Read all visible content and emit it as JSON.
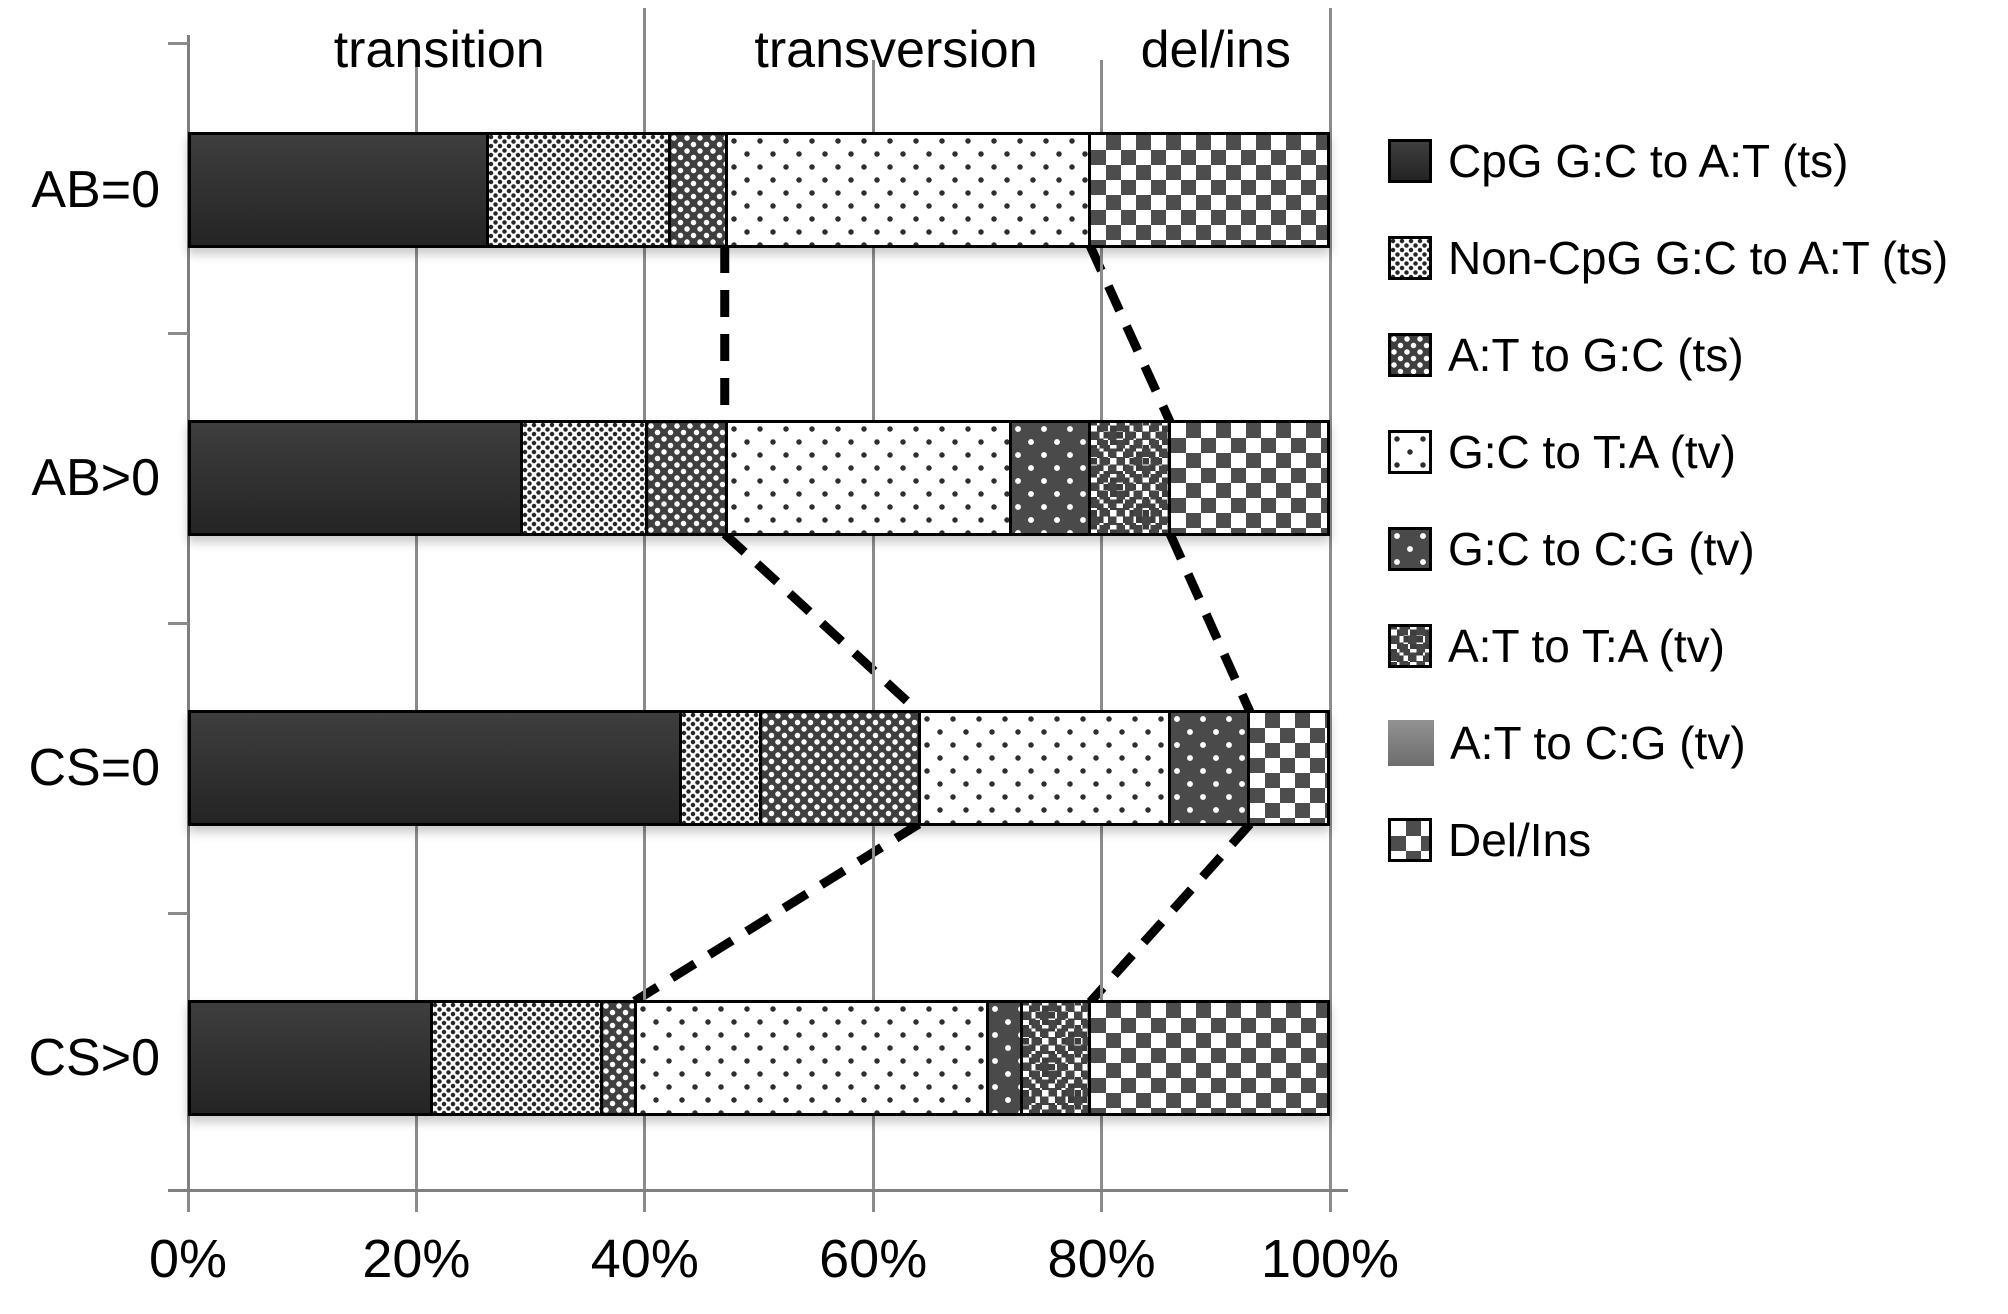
{
  "chart_data": {
    "type": "bar",
    "orientation": "horizontal",
    "stacked": true,
    "unit": "percent",
    "categories": [
      "AB=0",
      "AB>0",
      "CS=0",
      "CS>0"
    ],
    "series": [
      {
        "name": "CpG G:C to A:T (ts)",
        "pattern": "solid-dark",
        "values": [
          26,
          29,
          43,
          21
        ]
      },
      {
        "name": "Non-CpG G:C to A:T (ts)",
        "pattern": "dense-dark-dots-light",
        "values": [
          16,
          11,
          7,
          15
        ]
      },
      {
        "name": "A:T to G:C (ts)",
        "pattern": "white-dots-dark-dense",
        "values": [
          5,
          7,
          14,
          3
        ]
      },
      {
        "name": "G:C to T:A (tv)",
        "pattern": "sparse-dark-dots-light",
        "values": [
          32,
          25,
          22,
          31
        ]
      },
      {
        "name": "G:C to C:G (tv)",
        "pattern": "white-dots-dark-sparse",
        "values": [
          0,
          7,
          7,
          3
        ]
      },
      {
        "name": "A:T to T:A (tv)",
        "pattern": "small-random-checker",
        "values": [
          0,
          7,
          0,
          6
        ]
      },
      {
        "name": "A:T to C:G (tv)",
        "pattern": "solid-gray",
        "values": [
          0,
          0,
          0,
          0
        ]
      },
      {
        "name": "Del/Ins",
        "pattern": "checkerboard",
        "values": [
          21,
          14,
          7,
          21
        ]
      }
    ],
    "group_labels": [
      {
        "label": "transition",
        "span_pct": [
          0,
          40
        ]
      },
      {
        "label": "transversion",
        "span_pct": [
          40,
          80
        ]
      },
      {
        "label": "del/ins",
        "span_pct": [
          80,
          100
        ]
      }
    ],
    "x_axis": {
      "tick_labels": [
        "0%",
        "20%",
        "40%",
        "60%",
        "80%",
        "100%"
      ],
      "range": [
        0,
        100
      ],
      "grid": true
    },
    "legend_position": "right",
    "connectors_note": "dashed lines join the transition/transversion boundary and the transversion/del-ins boundary of adjacent bars",
    "connector_boundaries": {
      "ts_tv_pct": [
        47,
        47,
        64,
        39
      ],
      "tv_delins_pct": [
        79,
        86,
        93,
        79
      ]
    }
  },
  "colors": {
    "bar_border": "#000000",
    "axis": "#7f7f7f",
    "grid": "#8c8c8c",
    "dark_fill": "#2e2e2e",
    "mid_dark_fill": "#4a4a4a",
    "gray_fill": "#808080",
    "background": "#ffffff",
    "text": "#000000"
  }
}
